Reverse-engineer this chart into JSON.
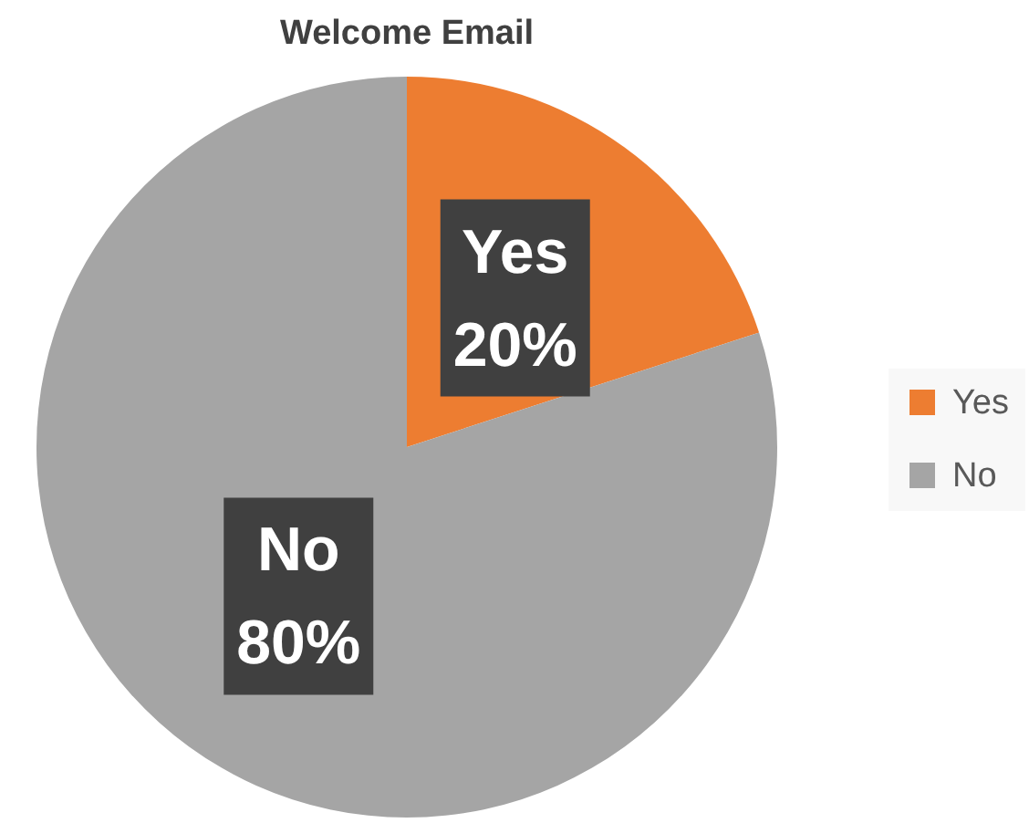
{
  "chart_data": {
    "type": "pie",
    "title": "Welcome Email",
    "categories": [
      "Yes",
      "No"
    ],
    "values": [
      20,
      80
    ],
    "colors": [
      "#ed7d31",
      "#a5a5a5"
    ],
    "value_labels": [
      "20%",
      "80%"
    ],
    "legend": "right"
  }
}
